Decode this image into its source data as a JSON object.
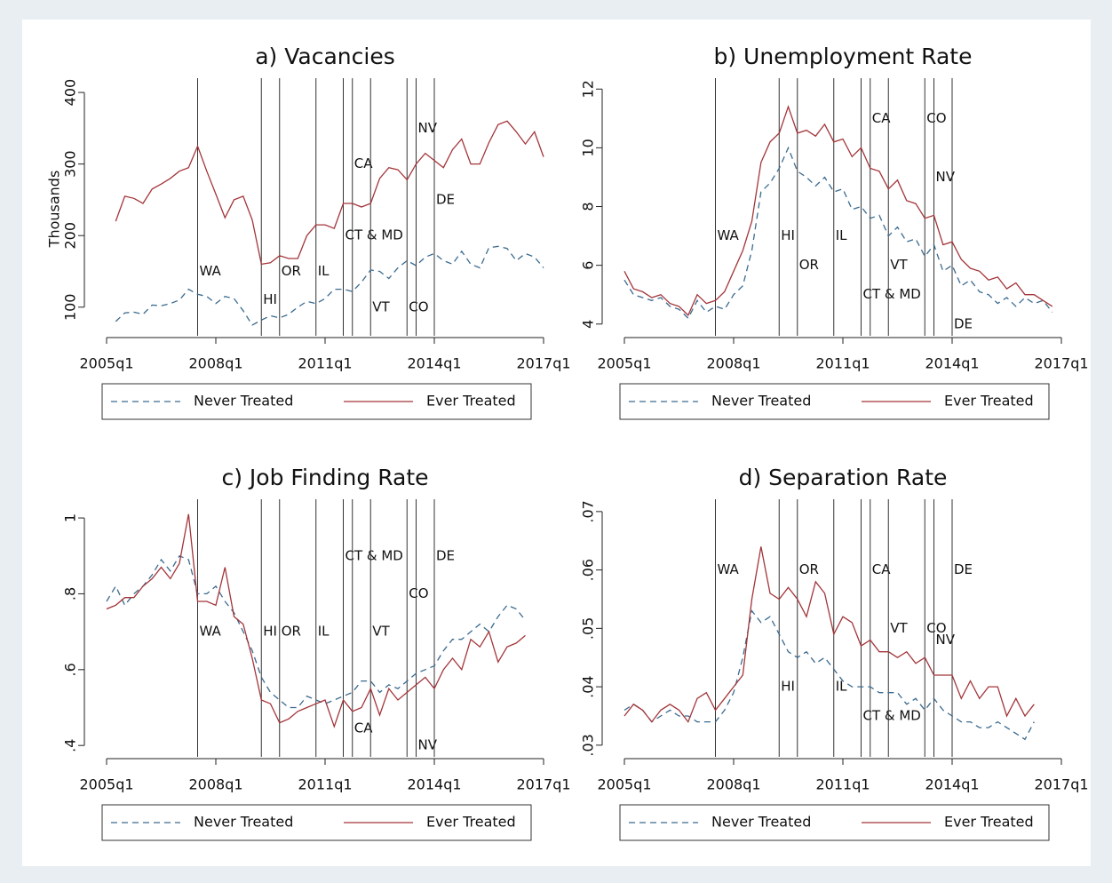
{
  "chart_data": [
    {
      "type": "line",
      "title": "a) Vacancies",
      "ylabel": "Thousands",
      "x": [
        "2005q2",
        "2005q3",
        "2005q4",
        "2006q1",
        "2006q2",
        "2006q3",
        "2006q4",
        "2007q1",
        "2007q2",
        "2007q3",
        "2007q4",
        "2008q1",
        "2008q2",
        "2008q3",
        "2008q4",
        "2009q1",
        "2009q2",
        "2009q3",
        "2009q4",
        "2010q1",
        "2010q2",
        "2010q3",
        "2010q4",
        "2011q1",
        "2011q2",
        "2011q3",
        "2011q4",
        "2012q1",
        "2012q2",
        "2012q3",
        "2012q4",
        "2013q1",
        "2013q2",
        "2013q3",
        "2013q4",
        "2014q1",
        "2014q2",
        "2014q3",
        "2014q4",
        "2015q1",
        "2015q2",
        "2015q3",
        "2015q4",
        "2016q1",
        "2016q2",
        "2016q3",
        "2016q4",
        "2017q1"
      ],
      "series": [
        {
          "name": "Never Treated",
          "color": "#3a6a8f",
          "dash": true,
          "values": [
            80,
            92,
            93,
            90,
            103,
            102,
            105,
            110,
            125,
            118,
            115,
            105,
            115,
            112,
            95,
            75,
            82,
            88,
            85,
            90,
            100,
            108,
            105,
            112,
            125,
            125,
            122,
            135,
            152,
            150,
            140,
            155,
            165,
            158,
            170,
            175,
            165,
            160,
            178,
            160,
            155,
            183,
            185,
            182,
            165,
            175,
            170,
            155
          ]
        },
        {
          "name": "Ever Treated",
          "color": "#a3353a",
          "dash": false,
          "values": [
            220,
            255,
            252,
            245,
            265,
            272,
            280,
            290,
            295,
            325,
            290,
            258,
            225,
            250,
            255,
            222,
            160,
            162,
            172,
            168,
            168,
            200,
            215,
            215,
            210,
            245,
            245,
            240,
            245,
            280,
            295,
            292,
            278,
            300,
            315,
            305,
            295,
            320,
            335,
            300,
            300,
            330,
            355,
            360,
            345,
            328,
            345,
            310
          ]
        }
      ],
      "xlim": [
        "2005q1",
        "2017q1"
      ],
      "xticks": [
        "2005q1",
        "2008q1",
        "2011q1",
        "2014q1",
        "2017q1"
      ],
      "ylim": [
        60,
        415
      ],
      "yticks": [
        100,
        200,
        300,
        400
      ],
      "events": [
        {
          "x": "2007q3",
          "label": "WA",
          "y": 150
        },
        {
          "x": "2009q2",
          "label": "HI",
          "y": 110
        },
        {
          "x": "2009q4",
          "label": "OR",
          "y": 150
        },
        {
          "x": "2010q4",
          "label": "IL",
          "y": 150
        },
        {
          "x": "2011q3",
          "label": "CT & MD",
          "y": 200
        },
        {
          "x": "2011q4",
          "label": "CA",
          "y": 300
        },
        {
          "x": "2012q2",
          "label": "VT",
          "y": 100
        },
        {
          "x": "2013q2",
          "label": "CO",
          "y": 100
        },
        {
          "x": "2013q3",
          "label": "NV",
          "y": 350
        },
        {
          "x": "2014q1",
          "label": "DE",
          "y": 250
        }
      ]
    },
    {
      "type": "line",
      "title": "b) Unemployment Rate",
      "x": [
        "2005q1",
        "2005q2",
        "2005q3",
        "2005q4",
        "2006q1",
        "2006q2",
        "2006q3",
        "2006q4",
        "2007q1",
        "2007q2",
        "2007q3",
        "2007q4",
        "2008q1",
        "2008q2",
        "2008q3",
        "2008q4",
        "2009q1",
        "2009q2",
        "2009q3",
        "2009q4",
        "2010q1",
        "2010q2",
        "2010q3",
        "2010q4",
        "2011q1",
        "2011q2",
        "2011q3",
        "2011q4",
        "2012q1",
        "2012q2",
        "2012q3",
        "2012q4",
        "2013q1",
        "2013q2",
        "2013q3",
        "2013q4",
        "2014q1",
        "2014q2",
        "2014q3",
        "2014q4",
        "2015q1",
        "2015q2",
        "2015q3",
        "2015q4",
        "2016q1",
        "2016q2",
        "2016q3",
        "2016q4"
      ],
      "series": [
        {
          "name": "Never Treated",
          "color": "#3a6a8f",
          "dash": true,
          "values": [
            5.5,
            5.0,
            4.9,
            4.8,
            4.9,
            4.6,
            4.5,
            4.2,
            4.8,
            4.4,
            4.6,
            4.5,
            5.0,
            5.3,
            6.5,
            8.5,
            8.8,
            9.3,
            10.0,
            9.2,
            9.0,
            8.7,
            9.0,
            8.5,
            8.6,
            7.9,
            8.0,
            7.6,
            7.7,
            7.0,
            7.3,
            6.8,
            6.9,
            6.3,
            6.7,
            5.8,
            6.0,
            5.3,
            5.5,
            5.1,
            5.0,
            4.7,
            4.9,
            4.6,
            4.9,
            4.7,
            4.8,
            4.4
          ]
        },
        {
          "name": "Ever Treated",
          "color": "#a3353a",
          "dash": false,
          "values": [
            5.8,
            5.2,
            5.1,
            4.9,
            5.0,
            4.7,
            4.6,
            4.3,
            5.0,
            4.7,
            4.8,
            5.1,
            5.8,
            6.5,
            7.5,
            9.5,
            10.2,
            10.5,
            11.4,
            10.5,
            10.6,
            10.4,
            10.8,
            10.2,
            10.3,
            9.7,
            10.0,
            9.3,
            9.2,
            8.6,
            8.9,
            8.2,
            8.1,
            7.6,
            7.7,
            6.7,
            6.8,
            6.2,
            5.9,
            5.8,
            5.5,
            5.6,
            5.2,
            5.4,
            5.0,
            5.0,
            4.8,
            4.6
          ]
        }
      ],
      "xlim": [
        "2005q1",
        "2017q1"
      ],
      "xticks": [
        "2005q1",
        "2008q1",
        "2011q1",
        "2014q1",
        "2017q1"
      ],
      "ylim": [
        3.6,
        12.25
      ],
      "yticks": [
        4,
        6,
        8,
        10,
        12
      ],
      "events": [
        {
          "x": "2007q3",
          "label": "WA",
          "y": 7
        },
        {
          "x": "2009q2",
          "label": "HI",
          "y": 7
        },
        {
          "x": "2009q4",
          "label": "OR",
          "y": 6
        },
        {
          "x": "2010q4",
          "label": "IL",
          "y": 7
        },
        {
          "x": "2011q3",
          "label": "CT & MD",
          "y": 5
        },
        {
          "x": "2011q4",
          "label": "CA",
          "y": 11
        },
        {
          "x": "2012q2",
          "label": "VT",
          "y": 6
        },
        {
          "x": "2013q2",
          "label": "CO",
          "y": 11
        },
        {
          "x": "2013q3",
          "label": "NV",
          "y": 9
        },
        {
          "x": "2014q1",
          "label": "DE",
          "y": 4
        }
      ]
    },
    {
      "type": "line",
      "title": "c) Job Finding Rate",
      "x": [
        "2005q1",
        "2005q2",
        "2005q3",
        "2005q4",
        "2006q1",
        "2006q2",
        "2006q3",
        "2006q4",
        "2007q1",
        "2007q2",
        "2007q3",
        "2007q4",
        "2008q1",
        "2008q2",
        "2008q3",
        "2008q4",
        "2009q1",
        "2009q2",
        "2009q3",
        "2009q4",
        "2010q1",
        "2010q2",
        "2010q3",
        "2010q4",
        "2011q1",
        "2011q2",
        "2011q3",
        "2011q4",
        "2012q1",
        "2012q2",
        "2012q3",
        "2012q4",
        "2013q1",
        "2013q2",
        "2013q3",
        "2013q4",
        "2014q1",
        "2014q2",
        "2014q3",
        "2014q4",
        "2015q1",
        "2015q2",
        "2015q3",
        "2015q4",
        "2016q1",
        "2016q2",
        "2016q3"
      ],
      "series": [
        {
          "name": "Never Treated",
          "color": "#3a6a8f",
          "dash": true,
          "values": [
            0.78,
            0.82,
            0.77,
            0.8,
            0.82,
            0.85,
            0.89,
            0.86,
            0.9,
            0.89,
            0.8,
            0.8,
            0.82,
            0.78,
            0.75,
            0.7,
            0.65,
            0.58,
            0.54,
            0.52,
            0.5,
            0.5,
            0.53,
            0.52,
            0.51,
            0.52,
            0.53,
            0.54,
            0.57,
            0.57,
            0.54,
            0.56,
            0.55,
            0.57,
            0.59,
            0.6,
            0.61,
            0.65,
            0.68,
            0.68,
            0.7,
            0.72,
            0.7,
            0.74,
            0.77,
            0.76,
            0.73
          ]
        },
        {
          "name": "Ever Treated",
          "color": "#a3353a",
          "dash": false,
          "values": [
            0.76,
            0.77,
            0.79,
            0.79,
            0.82,
            0.84,
            0.87,
            0.84,
            0.88,
            1.01,
            0.78,
            0.78,
            0.77,
            0.87,
            0.74,
            0.72,
            0.63,
            0.52,
            0.51,
            0.46,
            0.47,
            0.49,
            0.5,
            0.51,
            0.52,
            0.45,
            0.52,
            0.49,
            0.5,
            0.55,
            0.48,
            0.55,
            0.52,
            0.54,
            0.56,
            0.58,
            0.55,
            0.6,
            0.63,
            0.6,
            0.68,
            0.66,
            0.7,
            0.62,
            0.66,
            0.67,
            0.69
          ]
        }
      ],
      "xlim": [
        "2005q1",
        "2017q1"
      ],
      "xticks": [
        "2005q1",
        "2008q1",
        "2011q1",
        "2014q1",
        "2017q1"
      ],
      "ylim": [
        0.37,
        1.04
      ],
      "yticks": [
        {
          "value": 0.4,
          "label": ".4"
        },
        {
          "value": 0.6,
          "label": ".6"
        },
        {
          "value": 0.8,
          "label": ".8"
        },
        1
      ],
      "events": [
        {
          "x": "2007q3",
          "label": "WA",
          "y": 0.7
        },
        {
          "x": "2009q2",
          "label": "HI",
          "y": 0.7
        },
        {
          "x": "2009q4",
          "label": "OR",
          "y": 0.7
        },
        {
          "x": "2010q4",
          "label": "IL",
          "y": 0.7
        },
        {
          "x": "2011q3",
          "label": "CT & MD",
          "y": 0.9
        },
        {
          "x": "2011q4",
          "label": "CA",
          "y": 0.445
        },
        {
          "x": "2012q2",
          "label": "VT",
          "y": 0.7
        },
        {
          "x": "2013q2",
          "label": "CO",
          "y": 0.8
        },
        {
          "x": "2013q3",
          "label": "NV",
          "y": 0.4
        },
        {
          "x": "2014q1",
          "label": "DE",
          "y": 0.9
        }
      ]
    },
    {
      "type": "line",
      "title": "d) Separation Rate",
      "x": [
        "2005q1",
        "2005q2",
        "2005q3",
        "2005q4",
        "2006q1",
        "2006q2",
        "2006q3",
        "2006q4",
        "2007q1",
        "2007q2",
        "2007q3",
        "2007q4",
        "2008q1",
        "2008q2",
        "2008q3",
        "2008q4",
        "2009q1",
        "2009q2",
        "2009q3",
        "2009q4",
        "2010q1",
        "2010q2",
        "2010q3",
        "2010q4",
        "2011q1",
        "2011q2",
        "2011q3",
        "2011q4",
        "2012q1",
        "2012q2",
        "2012q3",
        "2012q4",
        "2013q1",
        "2013q2",
        "2013q3",
        "2013q4",
        "2014q1",
        "2014q2",
        "2014q3",
        "2014q4",
        "2015q1",
        "2015q2",
        "2015q3",
        "2015q4",
        "2016q1",
        "2016q2"
      ],
      "series": [
        {
          "name": "Never Treated",
          "color": "#3a6a8f",
          "dash": true,
          "values": [
            0.036,
            0.037,
            0.036,
            0.034,
            0.035,
            0.036,
            0.035,
            0.035,
            0.034,
            0.034,
            0.034,
            0.036,
            0.039,
            0.045,
            0.053,
            0.051,
            0.052,
            0.049,
            0.046,
            0.045,
            0.046,
            0.044,
            0.045,
            0.043,
            0.041,
            0.04,
            0.04,
            0.04,
            0.039,
            0.039,
            0.039,
            0.037,
            0.038,
            0.036,
            0.038,
            0.036,
            0.035,
            0.034,
            0.034,
            0.033,
            0.033,
            0.034,
            0.033,
            0.032,
            0.031,
            0.034
          ]
        },
        {
          "name": "Ever Treated",
          "color": "#a3353a",
          "dash": false,
          "values": [
            0.035,
            0.037,
            0.036,
            0.034,
            0.036,
            0.037,
            0.036,
            0.034,
            0.038,
            0.039,
            0.036,
            0.038,
            0.04,
            0.042,
            0.055,
            0.064,
            0.056,
            0.055,
            0.057,
            0.055,
            0.052,
            0.058,
            0.056,
            0.049,
            0.052,
            0.051,
            0.047,
            0.048,
            0.046,
            0.046,
            0.045,
            0.046,
            0.044,
            0.045,
            0.042,
            0.042,
            0.042,
            0.038,
            0.041,
            0.038,
            0.04,
            0.04,
            0.035,
            0.038,
            0.035,
            0.037
          ]
        }
      ],
      "xlim": [
        "2005q1",
        "2017q1"
      ],
      "xticks": [
        "2005q1",
        "2008q1",
        "2011q1",
        "2014q1",
        "2017q1"
      ],
      "ylim": [
        0.028,
        0.0715
      ],
      "yticks": [
        {
          "value": 0.03,
          "label": ".03"
        },
        {
          "value": 0.04,
          "label": ".04"
        },
        {
          "value": 0.05,
          "label": ".05"
        },
        {
          "value": 0.06,
          "label": ".06"
        },
        {
          "value": 0.07,
          "label": ".07"
        }
      ],
      "events": [
        {
          "x": "2007q3",
          "label": "WA",
          "y": 0.06
        },
        {
          "x": "2009q2",
          "label": "HI",
          "y": 0.04
        },
        {
          "x": "2009q4",
          "label": "OR",
          "y": 0.06
        },
        {
          "x": "2010q4",
          "label": "IL",
          "y": 0.04
        },
        {
          "x": "2011q3",
          "label": "CT & MD",
          "y": 0.035
        },
        {
          "x": "2011q4",
          "label": "CA",
          "y": 0.06
        },
        {
          "x": "2012q2",
          "label": "VT",
          "y": 0.05
        },
        {
          "x": "2013q2",
          "label": "CO",
          "y": 0.05
        },
        {
          "x": "2013q3",
          "label": "NV",
          "y": 0.048
        },
        {
          "x": "2014q1",
          "label": "DE",
          "y": 0.06
        }
      ]
    }
  ]
}
